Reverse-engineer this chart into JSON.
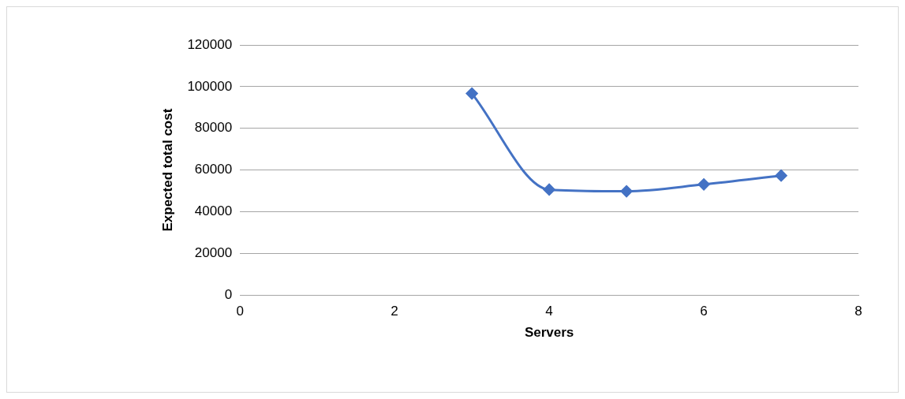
{
  "chart_data": {
    "type": "line",
    "xlabel": "Servers",
    "ylabel": "Expected total cost",
    "x": [
      3,
      4,
      5,
      6,
      7
    ],
    "series": [
      {
        "color": "#4472c4",
        "values": [
          96700,
          50600,
          49800,
          53100,
          57300
        ]
      }
    ],
    "xlim": [
      0,
      8
    ],
    "xticks": [
      0,
      2,
      4,
      6,
      8
    ],
    "ylim": [
      0,
      120000
    ],
    "yticks": [
      0,
      20000,
      40000,
      60000,
      80000,
      100000,
      120000
    ],
    "grid": "y",
    "legend": false,
    "marker": "diamond",
    "line_style": "solid"
  }
}
